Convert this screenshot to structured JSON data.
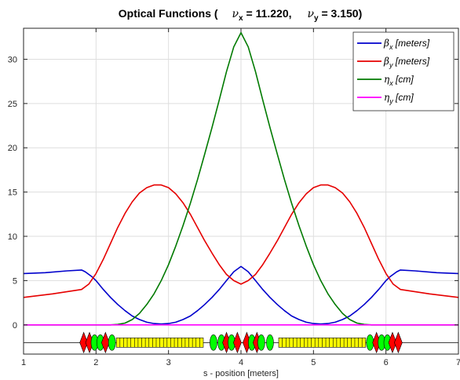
{
  "title": {
    "prefix": "Optical Functions (",
    "nu_x_symbol": "ν",
    "nu_x_sub": "x",
    "nu_x_value": " = 11.220,",
    "nu_y_symbol": "ν",
    "nu_y_sub": "y",
    "nu_y_value": " = 3.150)"
  },
  "chart_data": {
    "type": "line",
    "xlabel": "s - position [meters]",
    "ylabel": "",
    "xlim": [
      1,
      7
    ],
    "ylim": [
      -3.3,
      33.5
    ],
    "x_ticks": [
      1,
      2,
      3,
      4,
      5,
      6,
      7
    ],
    "y_ticks": [
      0,
      5,
      10,
      15,
      20,
      25,
      30
    ],
    "grid": true,
    "legend_position": "top-right",
    "series": [
      {
        "name": "β_x [meters]",
        "symbol": "β",
        "sub": "x",
        "unit": " [meters]",
        "color": "#0000cc",
        "x": [
          1.0,
          1.3,
          1.6,
          1.8,
          1.85,
          1.95,
          2.0,
          2.1,
          2.2,
          2.3,
          2.4,
          2.5,
          2.6,
          2.7,
          2.8,
          2.9,
          3.0,
          3.1,
          3.2,
          3.3,
          3.4,
          3.5,
          3.6,
          3.7,
          3.8,
          3.9,
          4.0,
          4.1,
          4.2,
          4.3,
          4.4,
          4.5,
          4.6,
          4.7,
          4.8,
          4.9,
          5.0,
          5.1,
          5.2,
          5.3,
          5.4,
          5.5,
          5.6,
          5.7,
          5.8,
          5.9,
          6.0,
          6.05,
          6.15,
          6.2,
          6.4,
          6.7,
          7.0
        ],
        "y": [
          5.8,
          5.9,
          6.1,
          6.2,
          6.0,
          5.4,
          5.0,
          4.0,
          3.1,
          2.3,
          1.6,
          1.0,
          0.6,
          0.3,
          0.15,
          0.1,
          0.15,
          0.3,
          0.6,
          1.0,
          1.6,
          2.3,
          3.1,
          4.0,
          5.0,
          6.0,
          6.6,
          6.0,
          5.0,
          4.0,
          3.1,
          2.3,
          1.6,
          1.0,
          0.6,
          0.3,
          0.15,
          0.1,
          0.15,
          0.3,
          0.6,
          1.0,
          1.6,
          2.3,
          3.1,
          4.0,
          5.0,
          5.4,
          6.0,
          6.2,
          6.1,
          5.9,
          5.8
        ]
      },
      {
        "name": "β_y [meters]",
        "symbol": "β",
        "sub": "y",
        "unit": " [meters]",
        "color": "#e60000",
        "x": [
          1.0,
          1.4,
          1.8,
          1.9,
          2.0,
          2.1,
          2.2,
          2.3,
          2.4,
          2.5,
          2.6,
          2.7,
          2.8,
          2.9,
          3.0,
          3.1,
          3.2,
          3.3,
          3.4,
          3.5,
          3.6,
          3.7,
          3.8,
          3.9,
          4.0,
          4.1,
          4.2,
          4.3,
          4.4,
          4.5,
          4.6,
          4.7,
          4.8,
          4.9,
          5.0,
          5.1,
          5.2,
          5.3,
          5.4,
          5.5,
          5.6,
          5.7,
          5.8,
          5.9,
          6.0,
          6.1,
          6.2,
          6.6,
          7.0
        ],
        "y": [
          3.1,
          3.5,
          4.0,
          4.6,
          5.8,
          7.4,
          9.2,
          11.0,
          12.6,
          13.9,
          14.9,
          15.5,
          15.8,
          15.8,
          15.5,
          14.8,
          13.8,
          12.5,
          11.0,
          9.5,
          8.1,
          6.8,
          5.7,
          5.0,
          4.6,
          5.0,
          5.7,
          6.8,
          8.1,
          9.5,
          11.0,
          12.5,
          13.8,
          14.8,
          15.5,
          15.8,
          15.8,
          15.5,
          14.9,
          13.9,
          12.6,
          11.0,
          9.2,
          7.4,
          5.8,
          4.6,
          4.0,
          3.5,
          3.1
        ]
      },
      {
        "name": "η_x [cm]",
        "symbol": "η",
        "sub": "x",
        "unit": " [cm]",
        "color": "#007a00",
        "x": [
          1.0,
          2.2,
          2.3,
          2.4,
          2.5,
          2.6,
          2.7,
          2.8,
          2.9,
          3.0,
          3.1,
          3.2,
          3.3,
          3.4,
          3.5,
          3.6,
          3.7,
          3.8,
          3.9,
          4.0,
          4.1,
          4.2,
          4.3,
          4.4,
          4.5,
          4.6,
          4.7,
          4.8,
          4.9,
          5.0,
          5.1,
          5.2,
          5.3,
          5.4,
          5.5,
          5.6,
          5.7,
          5.8,
          7.0
        ],
        "y": [
          0,
          0,
          0.05,
          0.2,
          0.6,
          1.3,
          2.3,
          3.5,
          5.0,
          6.8,
          8.9,
          11.2,
          13.7,
          16.4,
          19.3,
          22.3,
          25.4,
          28.6,
          31.4,
          33.0,
          31.4,
          28.6,
          25.4,
          22.3,
          19.3,
          16.4,
          13.7,
          11.2,
          8.9,
          6.8,
          5.0,
          3.5,
          2.3,
          1.3,
          0.6,
          0.2,
          0.05,
          0,
          0
        ]
      },
      {
        "name": "η_y [cm]",
        "symbol": "η",
        "sub": "y",
        "unit": " [cm]",
        "color": "#ff00ff",
        "x": [
          1.0,
          7.0
        ],
        "y": [
          0,
          0
        ]
      }
    ],
    "lattice": {
      "y": -2.0,
      "fill_color": "#ffff00",
      "elements": [
        {
          "type": "quad_f",
          "s": 1.83,
          "color": "#ff0000"
        },
        {
          "type": "quad_f",
          "s": 1.91,
          "color": "#ff0000"
        },
        {
          "type": "quad_d",
          "s": 1.98,
          "color": "#00ff00"
        },
        {
          "type": "quad_d",
          "s": 2.06,
          "color": "#00ff00"
        },
        {
          "type": "quad_f",
          "s": 2.13,
          "color": "#ff0000"
        },
        {
          "type": "quad_d",
          "s": 2.22,
          "color": "#00ff00"
        },
        {
          "type": "dipole",
          "s0": 2.28,
          "s1": 3.48,
          "n": 24
        },
        {
          "type": "quad_d",
          "s": 3.62,
          "color": "#00ff00"
        },
        {
          "type": "quad_d",
          "s": 3.73,
          "color": "#00ff00"
        },
        {
          "type": "quad_f",
          "s": 3.8,
          "color": "#ff0000"
        },
        {
          "type": "quad_d",
          "s": 3.87,
          "color": "#00ff00"
        },
        {
          "type": "quad_f",
          "s": 3.95,
          "color": "#ff0000"
        },
        {
          "type": "quad_f",
          "s": 4.08,
          "color": "#ff0000"
        },
        {
          "type": "quad_d",
          "s": 4.15,
          "color": "#00ff00"
        },
        {
          "type": "quad_f",
          "s": 4.22,
          "color": "#ff0000"
        },
        {
          "type": "quad_d",
          "s": 4.28,
          "color": "#00ff00"
        },
        {
          "type": "quad_d",
          "s": 4.4,
          "color": "#00ff00"
        },
        {
          "type": "dipole",
          "s0": 4.52,
          "s1": 5.72,
          "n": 24
        },
        {
          "type": "quad_d",
          "s": 5.78,
          "color": "#00ff00"
        },
        {
          "type": "quad_f",
          "s": 5.87,
          "color": "#ff0000"
        },
        {
          "type": "quad_d",
          "s": 5.94,
          "color": "#00ff00"
        },
        {
          "type": "quad_d",
          "s": 6.02,
          "color": "#00ff00"
        },
        {
          "type": "quad_f",
          "s": 6.09,
          "color": "#ff0000"
        },
        {
          "type": "quad_f",
          "s": 6.17,
          "color": "#ff0000"
        }
      ]
    }
  }
}
